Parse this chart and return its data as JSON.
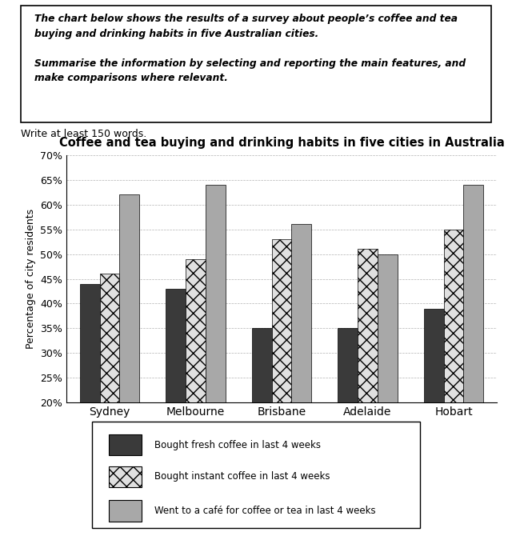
{
  "title": "Coffee and tea buying and drinking habits in five cities in Australia",
  "prompt_bold_italic": "The chart below shows the results of a survey about people’s coffee and tea\nbuying and drinking habits in five Australian cities.\n\nSummarise the information by selecting and reporting the main features, and\nmake comparisons where relevant.",
  "subtext": "Write at least 150 words.",
  "cities": [
    "Sydney",
    "Melbourne",
    "Brisbane",
    "Adelaide",
    "Hobart"
  ],
  "series": [
    {
      "label": "Bought fresh coffee in last 4 weeks",
      "values": [
        44,
        43,
        35,
        35,
        39
      ],
      "color": "#3a3a3a",
      "hatch": ""
    },
    {
      "label": "Bought instant coffee in last 4 weeks",
      "values": [
        46,
        49,
        53,
        51,
        55
      ],
      "color": "#e0e0e0",
      "hatch": "xx"
    },
    {
      "label": "Went to a café for coffee or tea in last 4 weeks",
      "values": [
        62,
        64,
        56,
        50,
        64
      ],
      "color": "#a8a8a8",
      "hatch": ""
    }
  ],
  "ylabel": "Percentage of city residents",
  "ylim": [
    20,
    70
  ],
  "yticks": [
    20,
    25,
    30,
    35,
    40,
    45,
    50,
    55,
    60,
    65,
    70
  ],
  "bar_width": 0.23,
  "fig_width": 6.4,
  "fig_height": 6.8
}
